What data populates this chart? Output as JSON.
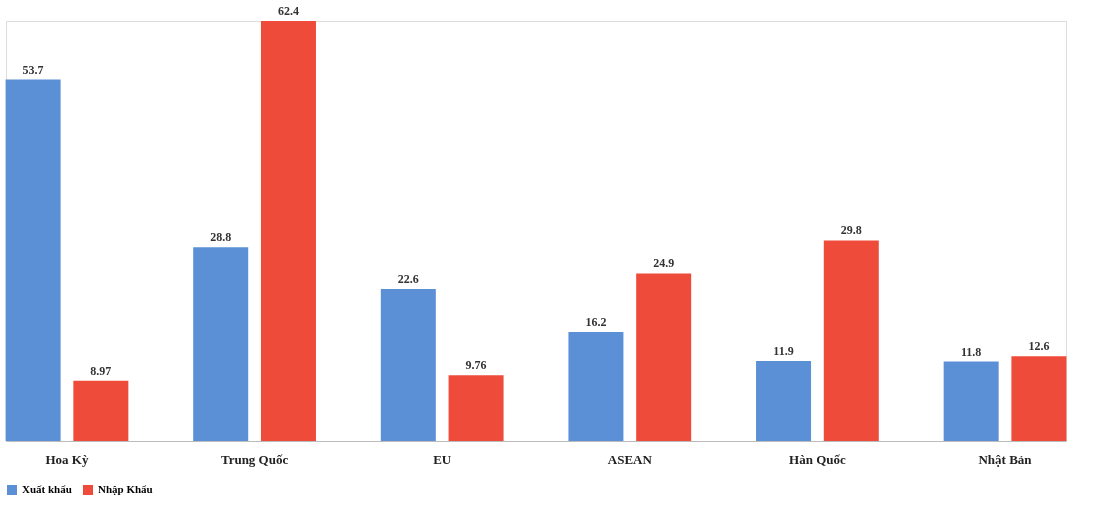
{
  "chart_data": {
    "type": "bar",
    "categories": [
      "Hoa Kỳ",
      "Trung Quốc",
      "EU",
      "ASEAN",
      "Hàn Quốc",
      "Nhật Bản"
    ],
    "series": [
      {
        "name": "Xuất khẩu",
        "color": "#5b8fd6",
        "values": [
          53.7,
          28.8,
          22.6,
          16.2,
          11.9,
          11.8
        ]
      },
      {
        "name": "Nhập Khẩu",
        "color": "#ee4b3b",
        "values": [
          8.97,
          62.4,
          9.76,
          24.9,
          29.8,
          12.6
        ]
      }
    ],
    "data_labels": true,
    "legend": "bottom",
    "grid": false
  }
}
